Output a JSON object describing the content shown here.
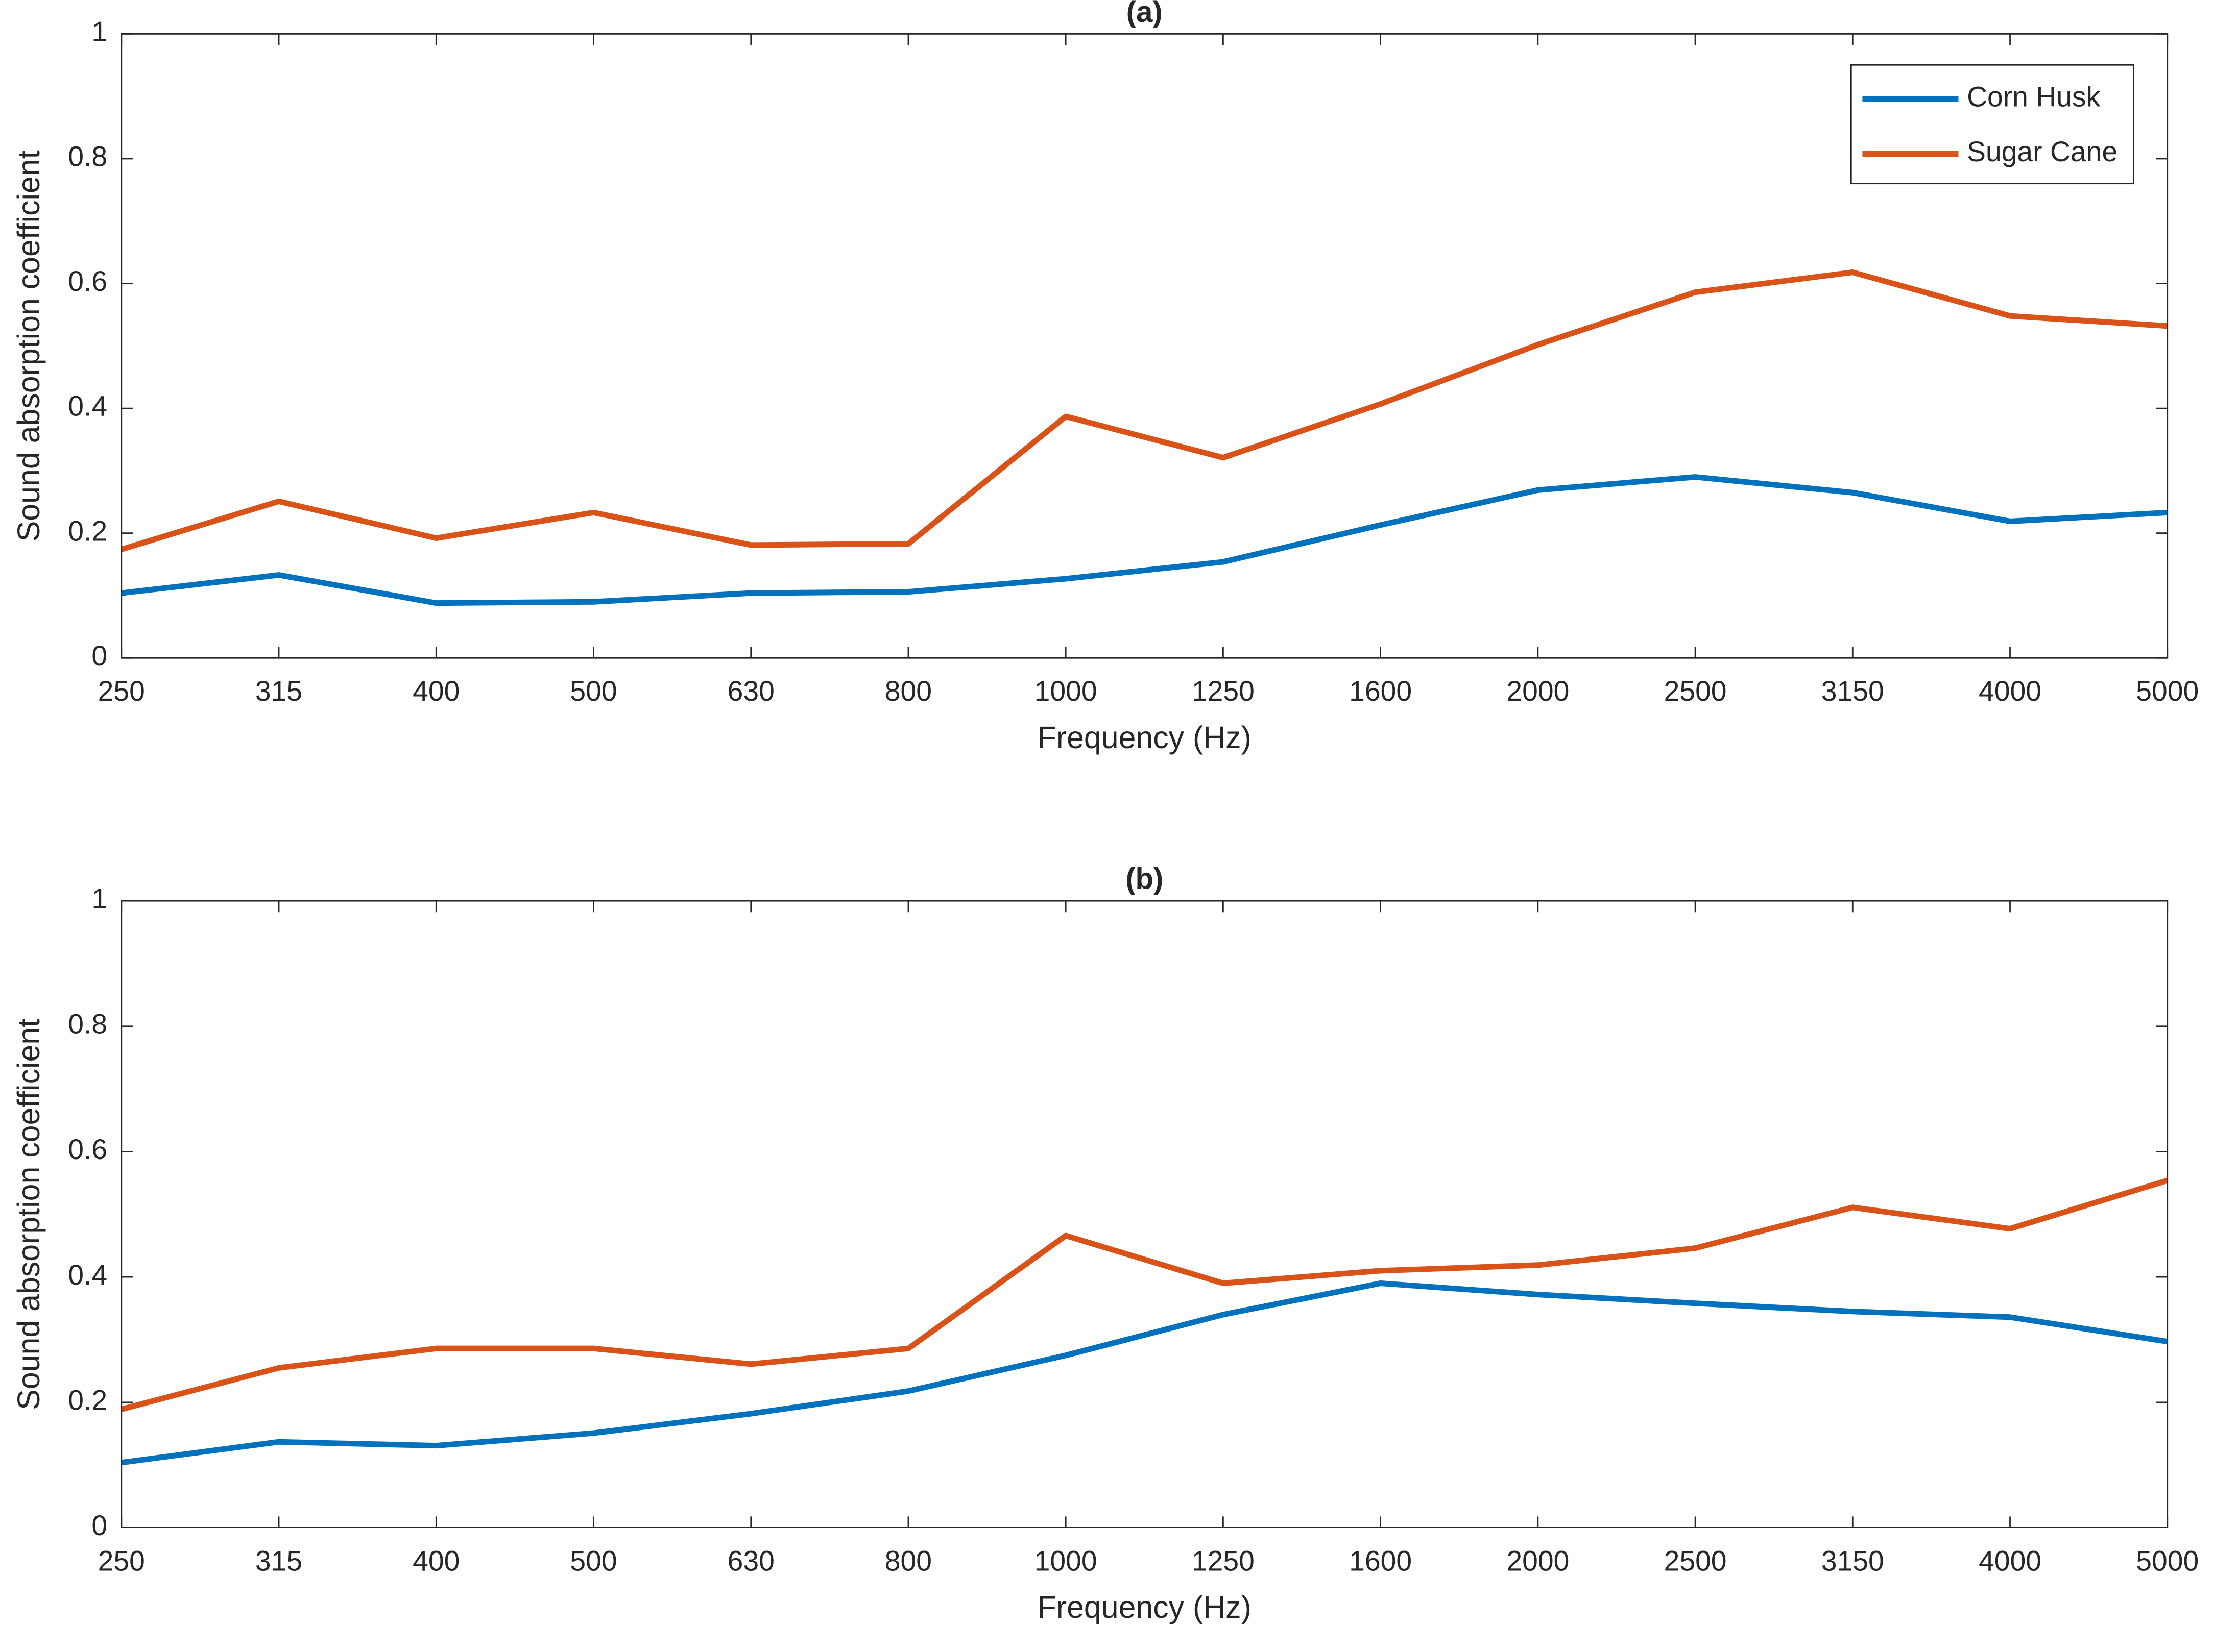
{
  "chart_data": [
    {
      "type": "line",
      "title": "(a)",
      "x_label": "Frequency (Hz)",
      "y_label": "Sound absorption coefficient",
      "categories": [
        "250",
        "315",
        "400",
        "500",
        "630",
        "800",
        "1000",
        "1250",
        "1600",
        "2000",
        "2500",
        "3150",
        "4000",
        "5000"
      ],
      "series": [
        {
          "name": "Corn Husk",
          "color": "#0072BD",
          "values": [
            0.104,
            0.133,
            0.088,
            0.09,
            0.104,
            0.106,
            0.127,
            0.154,
            0.213,
            0.269,
            0.29,
            0.265,
            0.219,
            0.233
          ]
        },
        {
          "name": "Sugar Cane",
          "color": "#D95319",
          "values": [
            0.174,
            0.251,
            0.192,
            0.233,
            0.181,
            0.183,
            0.387,
            0.321,
            0.407,
            0.502,
            0.586,
            0.618,
            0.548,
            0.532
          ]
        }
      ],
      "ylim": [
        0,
        1
      ],
      "yticks": [
        0,
        0.2,
        0.4,
        0.6,
        0.8,
        1
      ],
      "grid": false,
      "legend": "northeast"
    },
    {
      "type": "line",
      "title": "(b)",
      "x_label": "Frequency (Hz)",
      "y_label": "Sound absorption coefficient",
      "categories": [
        "250",
        "315",
        "400",
        "500",
        "630",
        "800",
        "1000",
        "1250",
        "1600",
        "2000",
        "2500",
        "3150",
        "4000",
        "5000"
      ],
      "series": [
        {
          "name": "Corn Husk",
          "color": "#0072BD",
          "values": [
            0.104,
            0.137,
            0.131,
            0.151,
            0.182,
            0.218,
            0.275,
            0.34,
            0.39,
            0.372,
            0.358,
            0.345,
            0.336,
            0.297
          ]
        },
        {
          "name": "Sugar Cane",
          "color": "#D95319",
          "values": [
            0.189,
            0.255,
            0.286,
            0.286,
            0.261,
            0.286,
            0.466,
            0.39,
            0.41,
            0.419,
            0.446,
            0.511,
            0.477,
            0.554
          ]
        }
      ],
      "ylim": [
        0,
        1
      ],
      "yticks": [
        0,
        0.2,
        0.4,
        0.6,
        0.8,
        1
      ],
      "grid": false
    }
  ]
}
